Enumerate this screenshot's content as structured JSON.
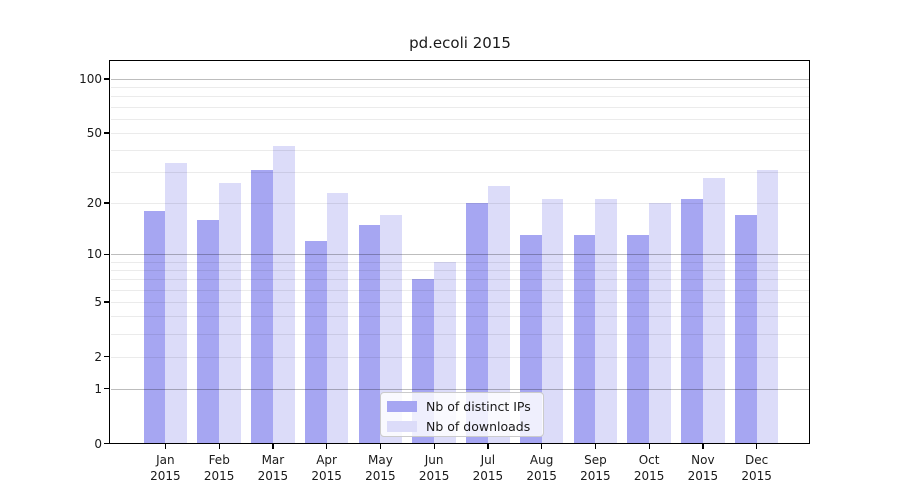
{
  "figure": {
    "background": "#ffffff",
    "text_color": "#1a1a1a",
    "spine_color": "#000000"
  },
  "chart_data": {
    "type": "bar",
    "title": "pd.ecoli 2015",
    "categories": [
      "Jan 2015",
      "Feb 2015",
      "Mar 2015",
      "Apr 2015",
      "May 2015",
      "Jun 2015",
      "Jul 2015",
      "Aug 2015",
      "Sep 2015",
      "Oct 2015",
      "Nov 2015",
      "Dec 2015"
    ],
    "series": [
      {
        "name": "Nb of distinct IPs",
        "color": "#a6a6f2",
        "values": [
          18,
          16,
          31,
          12,
          15,
          7,
          20,
          13,
          13,
          13,
          21,
          17
        ]
      },
      {
        "name": "Nb of downloads",
        "color": "#dcdcf9",
        "values": [
          34,
          26,
          42,
          23,
          17,
          9,
          25,
          21,
          21,
          20,
          28,
          31
        ]
      }
    ],
    "xlabel": "",
    "ylabel": "",
    "yscale": "log10(1+v)",
    "ylim": [
      0,
      126
    ],
    "ytick_values": [
      0,
      1,
      2,
      5,
      10,
      20,
      50,
      100
    ],
    "ytick_labels": [
      "0",
      "1",
      "2",
      "5",
      "10",
      "20",
      "50",
      "100"
    ],
    "major_gridline_values": [
      1,
      10,
      100
    ],
    "minor_gridline_values": [
      2,
      3,
      4,
      5,
      6,
      7,
      8,
      9,
      20,
      30,
      40,
      50,
      60,
      70,
      80,
      90
    ],
    "grid": "horizontal",
    "grid_major_color": "rgba(0,0,0,0.26)",
    "grid_minor_color": "rgba(0,0,0,0.08)",
    "legend": {
      "position": "inside-bottom-center"
    }
  }
}
